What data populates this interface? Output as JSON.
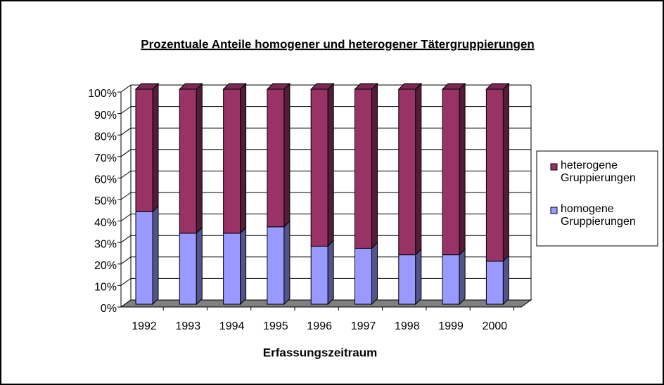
{
  "chart_data": {
    "type": "bar",
    "stacked": true,
    "title": "Prozentuale Anteile homogener und heterogener Tätergruppierungen",
    "xlabel": "Erfassungszeitraum",
    "categories": [
      "1992",
      "1993",
      "1994",
      "1995",
      "1996",
      "1997",
      "1998",
      "1999",
      "2000"
    ],
    "series": [
      {
        "name": "homogene Gruppierungen",
        "color": "#9999ff",
        "values": [
          43,
          33,
          33,
          36,
          27,
          26,
          23,
          23,
          20
        ]
      },
      {
        "name": "heterogene Gruppierungen",
        "color": "#993366",
        "values": [
          57,
          67,
          67,
          64,
          73,
          74,
          77,
          77,
          80
        ]
      }
    ],
    "ylim": [
      0,
      100
    ],
    "yticks": [
      {
        "value": 0,
        "label": "0%"
      },
      {
        "value": 10,
        "label": "10%"
      },
      {
        "value": 20,
        "label": "20%"
      },
      {
        "value": 30,
        "label": "30%"
      },
      {
        "value": 40,
        "label": "40%"
      },
      {
        "value": 50,
        "label": "50%"
      },
      {
        "value": 60,
        "label": "60%"
      },
      {
        "value": 70,
        "label": "70%"
      },
      {
        "value": 80,
        "label": "80%"
      },
      {
        "value": 90,
        "label": "90%"
      },
      {
        "value": 100,
        "label": "100%"
      }
    ],
    "grid": true,
    "legend": "right"
  }
}
